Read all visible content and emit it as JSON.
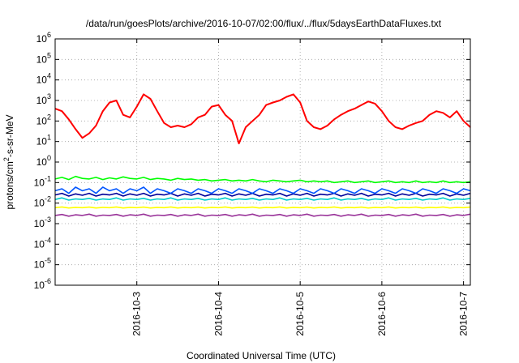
{
  "chart_data": {
    "type": "line",
    "title": "/data/run/goesPlots/archive/2016-10-07/02:00/flux/../flux/5daysEarthDataFluxes.txt",
    "xlabel": "Coordinated Universal Time (UTC)",
    "ylabel": "protons/cm2-s-sr-MeV",
    "yscale": "log",
    "ylim": [
      1e-06,
      1000000.0
    ],
    "xlim": [
      "2016-10-02T00:00",
      "2016-10-07T02:00"
    ],
    "grid": true,
    "x_ticks": [
      "2016-10-3",
      "2016-10-4",
      "2016-10-5",
      "2016-10-6",
      "2016-10-7"
    ],
    "y_ticks": [
      {
        "base": "10",
        "exp": "-6"
      },
      {
        "base": "10",
        "exp": "-5"
      },
      {
        "base": "10",
        "exp": "-4"
      },
      {
        "base": "10",
        "exp": "-3"
      },
      {
        "base": "10",
        "exp": "-2"
      },
      {
        "base": "10",
        "exp": "-1"
      },
      {
        "base": "10",
        "exp": "0"
      },
      {
        "base": "10",
        "exp": "1"
      },
      {
        "base": "10",
        "exp": "2"
      },
      {
        "base": "10",
        "exp": "3"
      },
      {
        "base": "10",
        "exp": "4"
      },
      {
        "base": "10",
        "exp": "5"
      },
      {
        "base": "10",
        "exp": "6"
      }
    ],
    "x": [
      "2016-10-02T00:00",
      "2016-10-02T02:00",
      "2016-10-02T04:00",
      "2016-10-02T06:00",
      "2016-10-02T08:00",
      "2016-10-02T10:00",
      "2016-10-02T12:00",
      "2016-10-02T14:00",
      "2016-10-02T16:00",
      "2016-10-02T18:00",
      "2016-10-02T20:00",
      "2016-10-02T22:00",
      "2016-10-03T00:00",
      "2016-10-03T02:00",
      "2016-10-03T04:00",
      "2016-10-03T06:00",
      "2016-10-03T08:00",
      "2016-10-03T10:00",
      "2016-10-03T12:00",
      "2016-10-03T14:00",
      "2016-10-03T16:00",
      "2016-10-03T18:00",
      "2016-10-03T20:00",
      "2016-10-03T22:00",
      "2016-10-04T00:00",
      "2016-10-04T02:00",
      "2016-10-04T04:00",
      "2016-10-04T06:00",
      "2016-10-04T08:00",
      "2016-10-04T10:00",
      "2016-10-04T12:00",
      "2016-10-04T14:00",
      "2016-10-04T16:00",
      "2016-10-04T18:00",
      "2016-10-04T20:00",
      "2016-10-04T22:00",
      "2016-10-05T00:00",
      "2016-10-05T02:00",
      "2016-10-05T04:00",
      "2016-10-05T06:00",
      "2016-10-05T08:00",
      "2016-10-05T10:00",
      "2016-10-05T12:00",
      "2016-10-05T14:00",
      "2016-10-05T16:00",
      "2016-10-05T18:00",
      "2016-10-05T20:00",
      "2016-10-05T22:00",
      "2016-10-06T00:00",
      "2016-10-06T02:00",
      "2016-10-06T04:00",
      "2016-10-06T06:00",
      "2016-10-06T08:00",
      "2016-10-06T10:00",
      "2016-10-06T12:00",
      "2016-10-06T14:00",
      "2016-10-06T16:00",
      "2016-10-06T18:00",
      "2016-10-06T20:00",
      "2016-10-06T22:00",
      "2016-10-07T00:00",
      "2016-10-07T02:00"
    ],
    "series": [
      {
        "color": "#ff0000",
        "values": [
          400,
          300,
          120,
          40,
          15,
          25,
          60,
          300,
          800,
          1000,
          200,
          150,
          500,
          2000,
          1200,
          300,
          80,
          50,
          60,
          50,
          70,
          150,
          200,
          500,
          600,
          200,
          100,
          8,
          50,
          100,
          200,
          600,
          800,
          1000,
          1500,
          2000,
          800,
          100,
          50,
          40,
          60,
          120,
          200,
          300,
          400,
          600,
          900,
          700,
          300,
          100,
          50,
          40,
          60,
          80,
          100,
          200,
          300,
          250,
          150,
          300,
          100,
          50
        ]
      },
      {
        "color": "#00ff00",
        "values": [
          0.15,
          0.18,
          0.14,
          0.2,
          0.16,
          0.15,
          0.18,
          0.14,
          0.17,
          0.15,
          0.19,
          0.16,
          0.15,
          0.18,
          0.14,
          0.16,
          0.15,
          0.13,
          0.16,
          0.14,
          0.15,
          0.13,
          0.14,
          0.12,
          0.13,
          0.14,
          0.12,
          0.13,
          0.12,
          0.14,
          0.12,
          0.11,
          0.13,
          0.12,
          0.11,
          0.12,
          0.13,
          0.11,
          0.12,
          0.11,
          0.12,
          0.1,
          0.11,
          0.12,
          0.1,
          0.11,
          0.12,
          0.1,
          0.11,
          0.12,
          0.1,
          0.11,
          0.1,
          0.12,
          0.1,
          0.11,
          0.1,
          0.12,
          0.1,
          0.11,
          0.1,
          0.11
        ]
      },
      {
        "color": "#0055ff",
        "values": [
          0.04,
          0.05,
          0.03,
          0.06,
          0.04,
          0.05,
          0.03,
          0.06,
          0.04,
          0.05,
          0.03,
          0.05,
          0.04,
          0.06,
          0.03,
          0.05,
          0.04,
          0.03,
          0.05,
          0.04,
          0.03,
          0.05,
          0.04,
          0.03,
          0.05,
          0.04,
          0.03,
          0.05,
          0.04,
          0.03,
          0.05,
          0.04,
          0.03,
          0.05,
          0.04,
          0.03,
          0.05,
          0.04,
          0.03,
          0.05,
          0.04,
          0.03,
          0.05,
          0.04,
          0.03,
          0.05,
          0.04,
          0.03,
          0.05,
          0.04,
          0.03,
          0.05,
          0.04,
          0.03,
          0.05,
          0.04,
          0.03,
          0.05,
          0.04,
          0.03,
          0.05,
          0.04
        ]
      },
      {
        "color": "#00cccc",
        "values": [
          0.015,
          0.018,
          0.014,
          0.016,
          0.015,
          0.017,
          0.014,
          0.016,
          0.015,
          0.018,
          0.014,
          0.016,
          0.015,
          0.017,
          0.014,
          0.016,
          0.015,
          0.018,
          0.014,
          0.016,
          0.015,
          0.017,
          0.014,
          0.016,
          0.015,
          0.018,
          0.014,
          0.016,
          0.015,
          0.017,
          0.014,
          0.016,
          0.015,
          0.018,
          0.014,
          0.016,
          0.015,
          0.017,
          0.014,
          0.016,
          0.015,
          0.018,
          0.014,
          0.016,
          0.015,
          0.017,
          0.014,
          0.016,
          0.015,
          0.018,
          0.014,
          0.016,
          0.015,
          0.017,
          0.014,
          0.016,
          0.015,
          0.018,
          0.014,
          0.016,
          0.015,
          0.017
        ]
      },
      {
        "color": "#000099",
        "values": [
          0.025,
          0.03,
          0.022,
          0.028,
          0.024,
          0.03,
          0.022,
          0.027,
          0.025,
          0.03,
          0.022,
          0.028,
          0.024,
          0.03,
          0.022,
          0.027,
          0.025,
          0.03,
          0.022,
          0.028,
          0.024,
          0.03,
          0.022,
          0.027,
          0.025,
          0.03,
          0.022,
          0.028,
          0.024,
          0.03,
          0.022,
          0.027,
          0.025,
          0.03,
          0.022,
          0.028,
          0.024,
          0.03,
          0.022,
          0.027,
          0.025,
          0.03,
          0.022,
          0.028,
          0.024,
          0.03,
          0.022,
          0.027,
          0.025,
          0.03,
          0.022,
          0.028,
          0.024,
          0.03,
          0.022,
          0.027,
          0.025,
          0.03,
          0.022,
          0.028,
          0.024,
          0.03
        ]
      },
      {
        "color": "#ffff00",
        "values": [
          0.006,
          0.0065,
          0.0058,
          0.0062,
          0.006,
          0.0064,
          0.0058,
          0.0062,
          0.006,
          0.0065,
          0.0058,
          0.0062,
          0.006,
          0.0064,
          0.0058,
          0.0062,
          0.006,
          0.0065,
          0.0058,
          0.0062,
          0.006,
          0.0064,
          0.0058,
          0.0062,
          0.006,
          0.0065,
          0.0058,
          0.0062,
          0.006,
          0.0064,
          0.0058,
          0.0062,
          0.006,
          0.0065,
          0.0058,
          0.0062,
          0.006,
          0.0064,
          0.0058,
          0.0062,
          0.006,
          0.0065,
          0.0058,
          0.0062,
          0.006,
          0.0064,
          0.0058,
          0.0062,
          0.006,
          0.0065,
          0.0058,
          0.0062,
          0.006,
          0.0064,
          0.0058,
          0.0062,
          0.006,
          0.0065,
          0.0058,
          0.0062,
          0.006,
          0.0064
        ]
      },
      {
        "color": "#993399",
        "values": [
          0.0025,
          0.0028,
          0.0023,
          0.0027,
          0.0025,
          0.0029,
          0.0023,
          0.0026,
          0.0025,
          0.0028,
          0.0023,
          0.0027,
          0.0025,
          0.0029,
          0.0023,
          0.0026,
          0.0025,
          0.0028,
          0.0023,
          0.0027,
          0.0025,
          0.0029,
          0.0023,
          0.0026,
          0.0025,
          0.0028,
          0.0023,
          0.0027,
          0.0025,
          0.0029,
          0.0023,
          0.0026,
          0.0025,
          0.0028,
          0.0023,
          0.0027,
          0.0025,
          0.0029,
          0.0023,
          0.0026,
          0.0025,
          0.0028,
          0.0023,
          0.0027,
          0.0025,
          0.0029,
          0.0023,
          0.0026,
          0.0025,
          0.0028,
          0.0023,
          0.0027,
          0.0025,
          0.0029,
          0.0023,
          0.0026,
          0.0025,
          0.0028,
          0.0023,
          0.0027,
          0.0025,
          0.0029
        ]
      }
    ]
  }
}
